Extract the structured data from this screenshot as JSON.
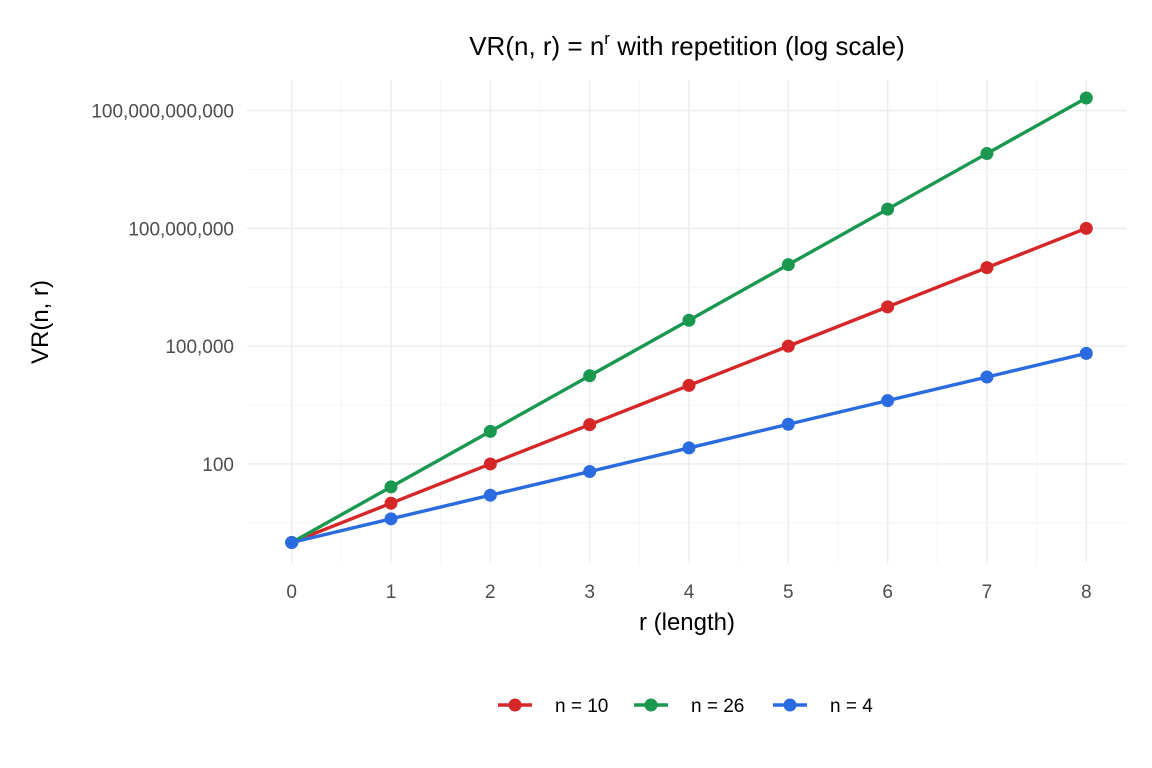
{
  "chart_data": {
    "type": "line",
    "title": {
      "prefix": "VR(n, r) = n",
      "superscript": "r",
      "suffix": " with repetition (log scale)"
    },
    "xlabel": "r (length)",
    "ylabel": "VR(n, r)",
    "x": [
      0,
      1,
      2,
      3,
      4,
      5,
      6,
      7,
      8
    ],
    "xlim": [
      -0.45,
      8.4
    ],
    "y_scale": "log10",
    "ylim": [
      0.3,
      600000000000
    ],
    "y_ticks": [
      {
        "value": 100,
        "label": "100"
      },
      {
        "value": 100000,
        "label": "100,000"
      },
      {
        "value": 100000000,
        "label": "100,000,000"
      },
      {
        "value": 100000000000,
        "label": "100,000,000,000"
      }
    ],
    "grid": true,
    "legend_position": "bottom",
    "series": [
      {
        "name": "n = 10",
        "color": "#d62728",
        "values": [
          1,
          10,
          100,
          1000,
          10000,
          100000,
          1000000,
          10000000,
          100000000
        ]
      },
      {
        "name": "n = 26",
        "color": "#1a9850",
        "values": [
          1,
          26,
          676,
          17576,
          456976,
          11881376,
          308915776,
          8031810176,
          208827064576
        ]
      },
      {
        "name": "n = 4",
        "color": "#2b6be0",
        "values": [
          1,
          4,
          16,
          64,
          256,
          1024,
          4096,
          16384,
          65536
        ]
      }
    ]
  }
}
